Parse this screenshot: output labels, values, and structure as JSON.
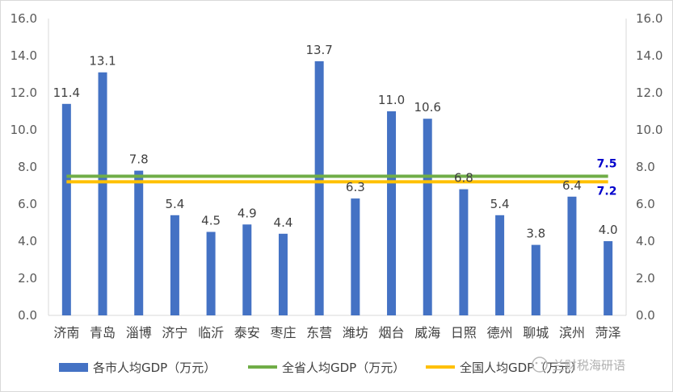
{
  "chart_data": {
    "type": "bar",
    "categories": [
      "济南",
      "青岛",
      "淄博",
      "济宁",
      "临沂",
      "泰安",
      "枣庄",
      "东营",
      "潍坊",
      "烟台",
      "威海",
      "日照",
      "德州",
      "聊城",
      "滨州",
      "菏泽"
    ],
    "series": [
      {
        "name": "各市人均GDP（万元）",
        "type": "bar",
        "color": "#4472c4",
        "values": [
          11.4,
          13.1,
          7.8,
          5.4,
          4.5,
          4.9,
          4.4,
          13.7,
          6.3,
          11.0,
          10.6,
          6.8,
          5.4,
          3.8,
          6.4,
          4.0
        ],
        "labels": [
          "11.4",
          "13.1",
          "7.8",
          "5.4",
          "4.5",
          "4.9",
          "4.4",
          "13.7",
          "6.3",
          "11.0",
          "10.6",
          "6.8",
          "5.4",
          "3.8",
          "6.4",
          "4.0"
        ]
      },
      {
        "name": "全省人均GDP（万元）",
        "type": "line",
        "color": "#70ad47",
        "value": 7.5,
        "label": "7.5"
      },
      {
        "name": "全国人均GDP（万元）",
        "type": "line",
        "color": "#ffc000",
        "value": 7.2,
        "label": "7.2"
      }
    ],
    "ylim": [
      0,
      16
    ],
    "yticks": [
      "0.0",
      "2.0",
      "4.0",
      "6.0",
      "8.0",
      "10.0",
      "12.0",
      "14.0",
      "16.0"
    ],
    "secondary_yticks": [
      "0.0",
      "2.0",
      "4.0",
      "6.0",
      "8.0",
      "10.0",
      "12.0",
      "14.0",
      "16.0"
    ],
    "legend_position": "bottom",
    "grid": false
  },
  "watermark": "兰财税海研语"
}
